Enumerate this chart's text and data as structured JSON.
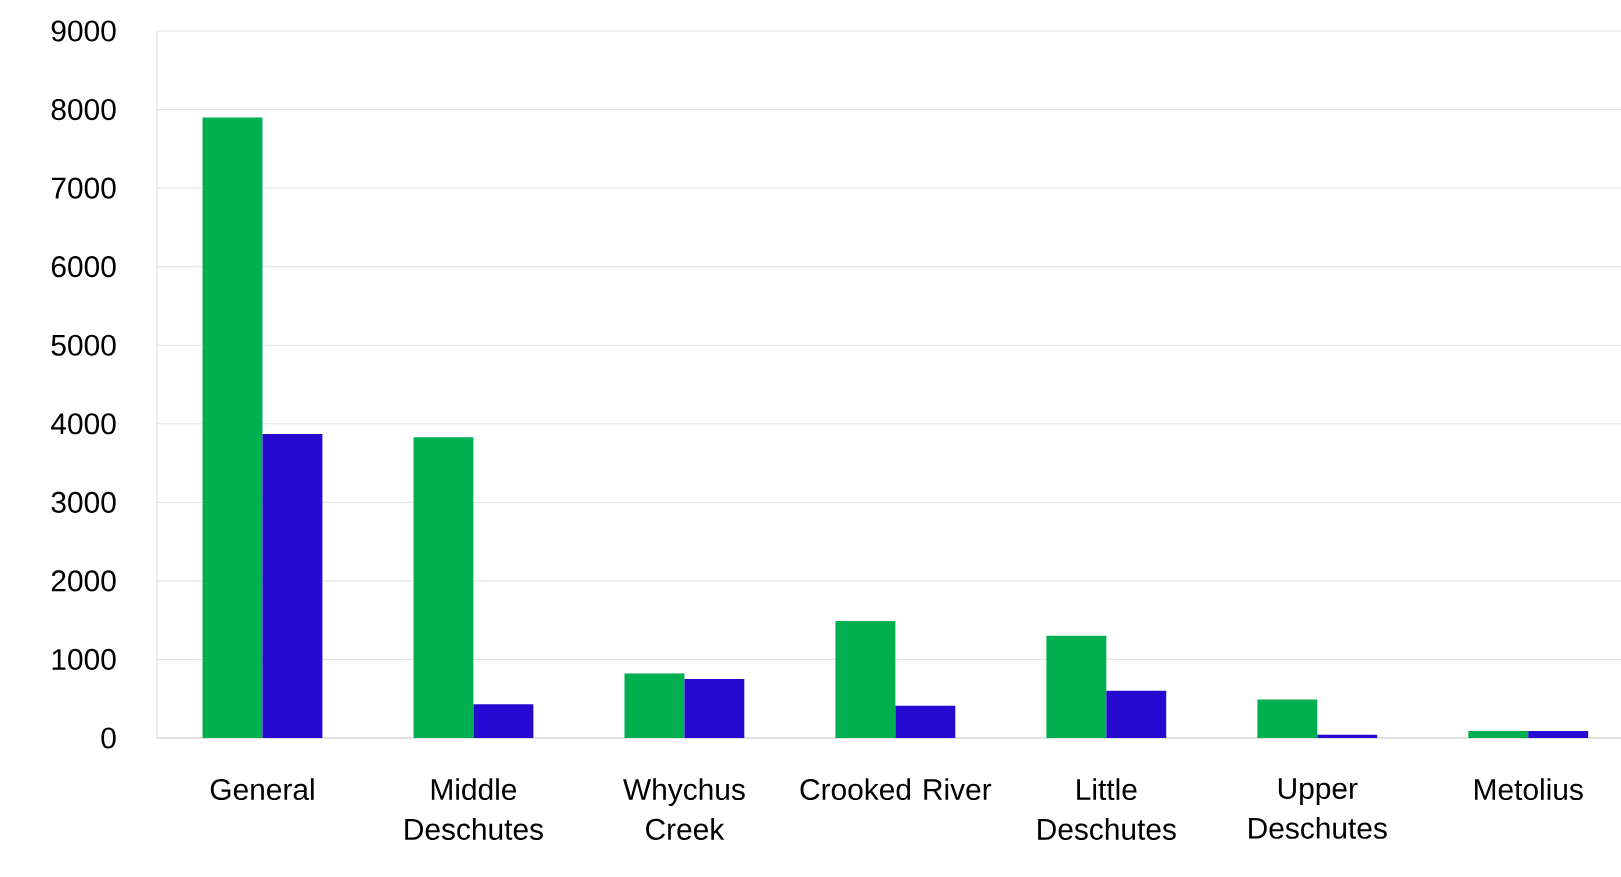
{
  "chart_data": {
    "type": "bar",
    "categories": [
      "General",
      "Middle Deschutes",
      "Whychus Creek",
      "Crooked River",
      "Little Deschutes",
      "Upper Deschutes",
      "Metolius"
    ],
    "series": [
      {
        "color": "#00b050",
        "values": [
          7900,
          3830,
          820,
          1490,
          1300,
          490,
          90
        ]
      },
      {
        "color": "#2609d0",
        "values": [
          3870,
          430,
          750,
          410,
          600,
          40,
          90
        ]
      }
    ],
    "ylim": [
      0,
      9000
    ],
    "yticks": [
      0,
      1000,
      2000,
      3000,
      4000,
      5000,
      6000,
      7000,
      8000,
      9000
    ],
    "grid": "y"
  }
}
